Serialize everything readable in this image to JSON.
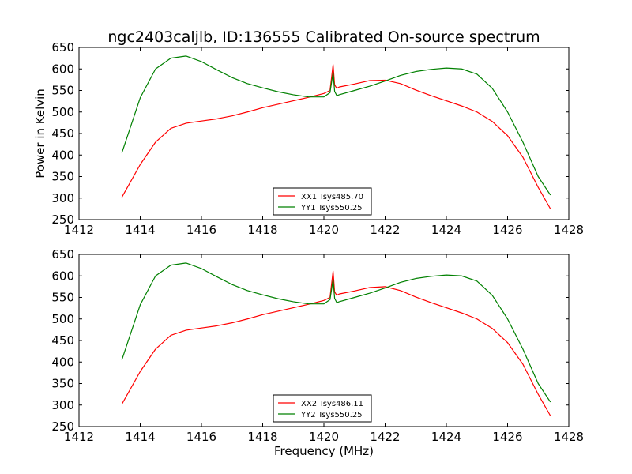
{
  "figure": {
    "title": "ngc2403caljlb, ID:136555 Calibrated On-source spectrum",
    "background": "#ffffff"
  },
  "chart_data": [
    {
      "type": "line",
      "title": "",
      "xlabel": "",
      "ylabel": "Power in Kelvin",
      "xlim": [
        1412,
        1428
      ],
      "ylim": [
        250,
        650
      ],
      "x_ticks": [
        1412,
        1414,
        1416,
        1418,
        1420,
        1422,
        1424,
        1426,
        1428
      ],
      "y_ticks": [
        250,
        300,
        350,
        400,
        450,
        500,
        550,
        600,
        650
      ],
      "legend_position": "lower-center",
      "grid": false,
      "series": [
        {
          "name": "XX1 Tsys485.70",
          "color": "#ff0000",
          "x": [
            1413.4,
            1414.0,
            1414.5,
            1415.0,
            1415.5,
            1416.0,
            1416.5,
            1417.0,
            1417.5,
            1418.0,
            1418.5,
            1419.0,
            1419.5,
            1420.0,
            1420.2,
            1420.3,
            1420.35,
            1420.42,
            1420.5,
            1421.0,
            1421.5,
            1422.0,
            1422.5,
            1423.0,
            1423.5,
            1424.0,
            1424.5,
            1425.0,
            1425.5,
            1426.0,
            1426.5,
            1427.0,
            1427.4
          ],
          "y": [
            302,
            378,
            430,
            462,
            474,
            479,
            484,
            491,
            500,
            510,
            518,
            526,
            534,
            543,
            550,
            610,
            563,
            555,
            558,
            565,
            573,
            574,
            566,
            551,
            538,
            526,
            514,
            500,
            478,
            445,
            395,
            325,
            275
          ]
        },
        {
          "name": "YY1 Tsys550.25",
          "color": "#008000",
          "x": [
            1413.4,
            1414.0,
            1414.5,
            1415.0,
            1415.5,
            1416.0,
            1416.5,
            1417.0,
            1417.5,
            1418.0,
            1418.5,
            1419.0,
            1419.5,
            1420.0,
            1420.2,
            1420.3,
            1420.35,
            1420.42,
            1420.5,
            1421.0,
            1421.5,
            1422.0,
            1422.5,
            1423.0,
            1423.5,
            1424.0,
            1424.5,
            1425.0,
            1425.5,
            1426.0,
            1426.5,
            1427.0,
            1427.4
          ],
          "y": [
            405,
            533,
            600,
            625,
            630,
            617,
            598,
            580,
            566,
            556,
            547,
            540,
            535,
            535,
            545,
            592,
            548,
            538,
            540,
            550,
            560,
            572,
            585,
            594,
            599,
            602,
            600,
            588,
            555,
            500,
            430,
            350,
            307
          ]
        }
      ]
    },
    {
      "type": "line",
      "title": "",
      "xlabel": "Frequency (MHz)",
      "ylabel": "",
      "xlim": [
        1412,
        1428
      ],
      "ylim": [
        250,
        650
      ],
      "x_ticks": [
        1412,
        1414,
        1416,
        1418,
        1420,
        1422,
        1424,
        1426,
        1428
      ],
      "y_ticks": [
        250,
        300,
        350,
        400,
        450,
        500,
        550,
        600,
        650
      ],
      "legend_position": "lower-center",
      "grid": false,
      "series": [
        {
          "name": "XX2 Tsys486.11",
          "color": "#ff0000",
          "x": [
            1413.4,
            1414.0,
            1414.5,
            1415.0,
            1415.5,
            1416.0,
            1416.5,
            1417.0,
            1417.5,
            1418.0,
            1418.5,
            1419.0,
            1419.5,
            1420.0,
            1420.2,
            1420.3,
            1420.35,
            1420.42,
            1420.5,
            1421.0,
            1421.5,
            1422.0,
            1422.5,
            1423.0,
            1423.5,
            1424.0,
            1424.5,
            1425.0,
            1425.5,
            1426.0,
            1426.5,
            1427.0,
            1427.4
          ],
          "y": [
            302,
            378,
            430,
            462,
            474,
            479,
            484,
            491,
            500,
            510,
            518,
            526,
            534,
            543,
            550,
            611,
            563,
            555,
            558,
            565,
            573,
            575,
            566,
            551,
            538,
            526,
            514,
            500,
            478,
            445,
            395,
            325,
            275
          ]
        },
        {
          "name": "YY2 Tsys550.25",
          "color": "#008000",
          "x": [
            1413.4,
            1414.0,
            1414.5,
            1415.0,
            1415.5,
            1416.0,
            1416.5,
            1417.0,
            1417.5,
            1418.0,
            1418.5,
            1419.0,
            1419.5,
            1420.0,
            1420.2,
            1420.3,
            1420.35,
            1420.42,
            1420.5,
            1421.0,
            1421.5,
            1422.0,
            1422.5,
            1423.0,
            1423.5,
            1424.0,
            1424.5,
            1425.0,
            1425.5,
            1426.0,
            1426.5,
            1427.0,
            1427.4
          ],
          "y": [
            405,
            533,
            600,
            625,
            630,
            617,
            598,
            580,
            566,
            556,
            547,
            540,
            535,
            535,
            545,
            592,
            548,
            538,
            540,
            550,
            560,
            572,
            585,
            594,
            599,
            602,
            600,
            588,
            555,
            500,
            430,
            350,
            307
          ]
        }
      ]
    }
  ]
}
